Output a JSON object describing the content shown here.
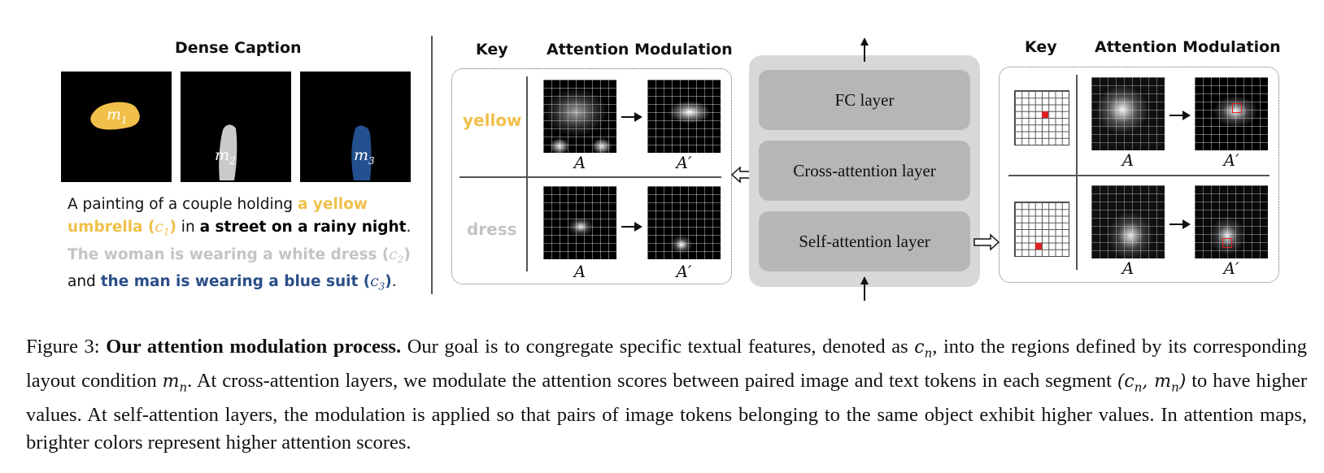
{
  "left": {
    "title": "Dense Caption",
    "masks": [
      {
        "label": "m",
        "sub": "1",
        "color": "#f0c04a"
      },
      {
        "label": "m",
        "sub": "2",
        "color": "#c8c8c8"
      },
      {
        "label": "m",
        "sub": "3",
        "color": "#23508e"
      }
    ],
    "caption": {
      "t1": "A painting of a couple holding ",
      "y1": "a yellow",
      "y2": "umbrella (",
      "c1": "c",
      "c1s": "1",
      "y3": ")",
      "t2": " in ",
      "k1": "a street on a rainy night",
      "t3": ".",
      "g1": "The woman is wearing a white dress (",
      "c2": "c",
      "c2s": "2",
      "g2": ")",
      "t4": "and ",
      "b1": "the man is wearing a blue suit (",
      "c3": "c",
      "c3s": "3",
      "b2": ")",
      "t5": "."
    }
  },
  "middle": {
    "key_header": "Key",
    "mod_header": "Attention Modulation",
    "rows": [
      {
        "key": "yellow",
        "key_color": "#f0c04a"
      },
      {
        "key": "dress",
        "key_color": "#c4c4c4"
      }
    ],
    "map_A": "A",
    "map_A_prime": "A′"
  },
  "center": {
    "layers": [
      "FC layer",
      "Cross-attention layer",
      "Self-attention layer"
    ]
  },
  "right": {
    "key_header": "Key",
    "mod_header": "Attention Modulation",
    "map_A": "A",
    "map_A_prime": "A′"
  },
  "figure_caption": {
    "prefix": "Figure 3: ",
    "bold": "Our attention modulation process.",
    "s1": " Our goal is to congregate specific textual features, denoted as ",
    "cn": "c",
    "cn_sub": "n",
    "s2": ", into the regions defined by its corresponding layout condition ",
    "mn": "m",
    "mn_sub": "n",
    "s3": ". At cross-attention layers, we modulate the attention scores between paired image and text tokens in each segment ",
    "pair": "(c",
    "pair_sub1": "n",
    "pair_mid": ", m",
    "pair_sub2": "n",
    "pair_end": ")",
    "s4": " to have higher values. At self-attention layers, the modulation is applied so that pairs of image tokens belonging to the same object exhibit higher values. In attention maps, brighter colors represent higher attention scores."
  },
  "colors": {
    "yellow": "#f0c04a",
    "white": "#c4c4c4",
    "blue": "#2b4e88"
  }
}
